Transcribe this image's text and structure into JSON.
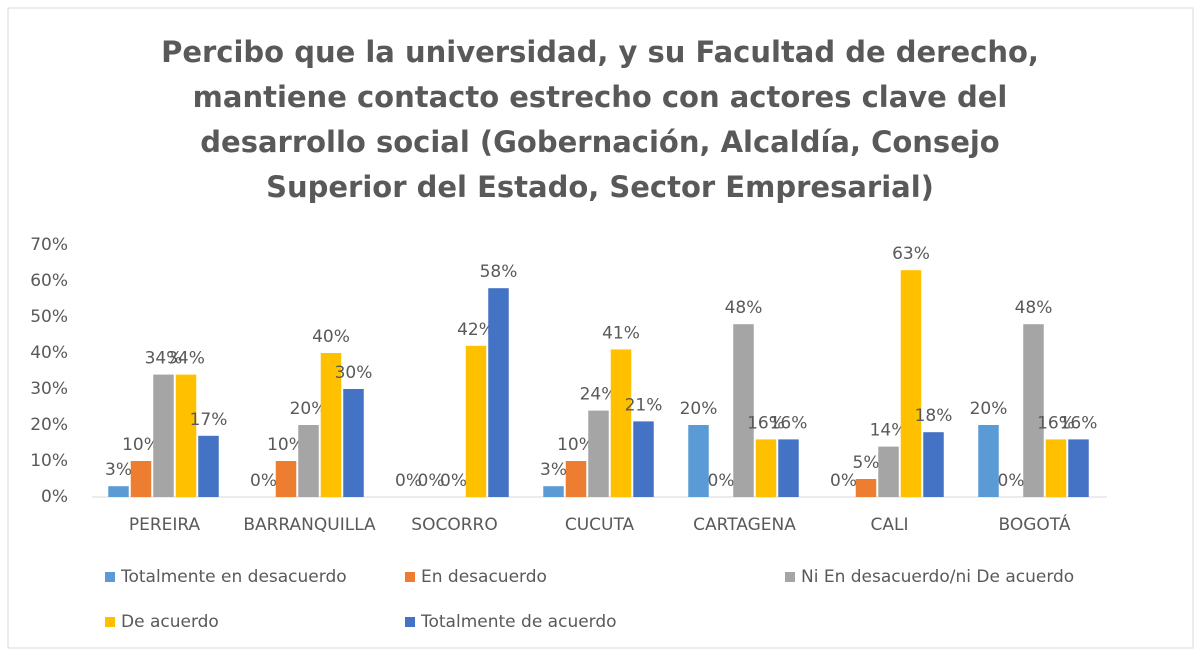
{
  "chart_data": {
    "type": "bar",
    "title": "Percibo que la universidad, y su Facultad de derecho, mantiene contacto estrecho con actores clave del desarrollo social (Gobernación, Alcaldía, Consejo Superior del Estado, Sector Empresarial)",
    "categories": [
      "PEREIRA",
      "BARRANQUILLA",
      "SOCORRO",
      "CUCUTA",
      "CARTAGENA",
      "CALI",
      "BOGOTÁ"
    ],
    "series": [
      {
        "name": "Totalmente en desacuerdo",
        "color": "#5b9bd5",
        "values": [
          3,
          0,
          0,
          3,
          20,
          0,
          20
        ],
        "value_labels": [
          "3%",
          "0%",
          "0%",
          "3%",
          "20%",
          "0%",
          "20%"
        ]
      },
      {
        "name": "En desacuerdo",
        "color": "#ed7d31",
        "values": [
          10,
          10,
          0,
          10,
          0,
          5,
          0
        ],
        "value_labels": [
          "10%",
          "10%",
          "0%",
          "10%",
          "0%",
          "5%",
          "0%"
        ]
      },
      {
        "name": "Ni En desacuerdo/ni De acuerdo",
        "color": "#a5a5a5",
        "values": [
          34,
          20,
          0,
          24,
          48,
          14,
          48
        ],
        "value_labels": [
          "34%",
          "20%",
          "0%",
          "24%",
          "48%",
          "14%",
          "48%"
        ]
      },
      {
        "name": "De acuerdo",
        "color": "#ffc000",
        "values": [
          34,
          40,
          42,
          41,
          16,
          63,
          16
        ],
        "value_labels": [
          "34%",
          "40%",
          "42%",
          "41%",
          "16%",
          "63%",
          "16%"
        ]
      },
      {
        "name": "Totalmente de acuerdo",
        "color": "#4472c4",
        "values": [
          17,
          30,
          58,
          21,
          16,
          18,
          16
        ],
        "value_labels": [
          "17%",
          "30%",
          "58%",
          "21%",
          "16%",
          "18%",
          "16%"
        ]
      }
    ],
    "ylim": [
      0,
      70
    ],
    "yticks": [
      {
        "value": 0,
        "label": "0%"
      },
      {
        "value": 10,
        "label": "10%"
      },
      {
        "value": 20,
        "label": "20%"
      },
      {
        "value": 30,
        "label": "30%"
      },
      {
        "value": 40,
        "label": "40%"
      },
      {
        "value": 50,
        "label": "50%"
      },
      {
        "value": 60,
        "label": "60%"
      },
      {
        "value": 70,
        "label": "70%"
      }
    ],
    "grid": false,
    "legend": "bottom"
  }
}
